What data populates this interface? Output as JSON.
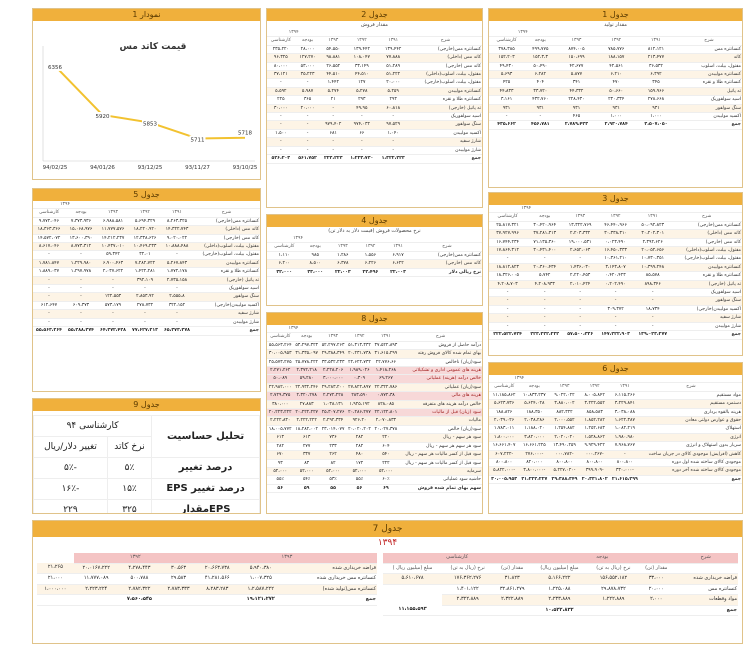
{
  "p1": {
    "title": "جدول 1",
    "subtitle": "مقدار تولید",
    "year": "۱۳۹۴",
    "cols": [
      "شرح",
      "۱۳۹۱",
      "۱۳۹۲",
      "۱۳۹۳",
      "بودجه",
      "کارشناسی"
    ],
    "rows": [
      [
        "کنسانتره مس",
        "۸۱۲،۱۲۱",
        "۷۸۵،۷۷۶",
        "۸۷۴،۰۰۵",
        "۴۹۹،۷۷۵",
        "۳۷۸،۳۸۵"
      ],
      [
        "کاتد",
        "۲۱۳،۴۷۷",
        "۱۸۸،۱۵۷",
        "۱۵۰،۶۹۹",
        "۱۵۲،۳،۳",
        "۱۵۲،۲۰۳"
      ],
      [
        "مفتول، بیلت، اسلوب",
        "۳۶،۵۳۲",
        "۴۲،۵۶۱",
        "۴۲،۶۷۷",
        "۵۰،۴۹۰",
        "۴۹،۴۳۰"
      ],
      [
        "کنسانتره مولیبدن",
        "۶،۳۹۲",
        "۶،۲۱۰",
        "۵،۸۷۷",
        "۶،۲۸۲",
        "۵،۶۹۳"
      ],
      [
        "کنسانتره طلا و نقره",
        "۳۴۵",
        "۴۷۰",
        "۳۴۱",
        "۴۰۴",
        "۴۲۵"
      ],
      [
        "ته پاتیل",
        "۱۵۹،۹۶۶",
        "۵۰،۶۶۰",
        "۴۴،۳۳۲",
        "۳۳،۷۲۰",
        "۴۴،۸۳۳"
      ],
      [
        "اسید سولفوریک",
        "۲۷۸،۶۶۸",
        "۲۳۰،۳۳۴",
        "۲۲۸،۴۳۰",
        "۴۳۲،۷۶۰",
        "۳،۱۶۱"
      ],
      [
        "سنگ سولفور",
        "۹۳۱",
        "۹۳۱",
        "۹۳۱",
        "۹۳۱",
        "۹۳۱"
      ],
      [
        "اکسید مولیبدن",
        "۱،۰۰۰",
        "۱،۰۰۰",
        "۴۶۵",
        "-",
        "-"
      ],
      [
        "جمع",
        "۳،۵۰۷،۰۵۰",
        "۲،۹۳۰،۷۸۴",
        "۲،۷۸۹،۴۲۳",
        "۴۵۶،۷۸۱",
        "۴۳۵،۶۶۲"
      ]
    ]
  },
  "p2": {
    "title": "جدول 2",
    "subtitle": "مقدار فروش",
    "year": "۱۳۹۴",
    "cols": [
      "شرح",
      "۱۳۹۱",
      "۱۳۹۲",
      "۱۳۹۳",
      "بودجه",
      "کارشناسی"
    ],
    "rows": [
      [
        "کنسانتره مس(خارجی)",
        "۱۳۹،۴۴۲",
        "۱۳۹،۴۴۲",
        "۵۴،۵۵۰",
        "۲۸،۰۰۰",
        "۲۳۵،۲۲۰"
      ],
      [
        "کاتد مس (داخلی)",
        "۷۷،۸۸۸",
        "۱۰۸،۰۴۷",
        "۹۸،۸۸۱",
        "۱۲۷،۲۷۰",
        "۹۶،۳۲۵"
      ],
      [
        "کاتد مس (خارجی)",
        "۵۱،۲۸۹",
        "۳۳،۱۴۹",
        "۲۶،۵۵۲",
        "۵۳،۰۰۰",
        "۸۰،۰۰۰"
      ],
      [
        "مفتول، بیلت، اسلوب(داخلی)",
        "۵۱،۲۲۲",
        "۴۴،۵۱۰",
        "۴۴،۵۱۰",
        "۳۵،۲۲۳",
        "۳۷،۱۲۱"
      ],
      [
        "مفتول، بیلت، اسلوب(خارجی)",
        "۲۰،۰۰۰",
        "۱۲۷",
        "۱،۴۴۲",
        "-",
        "-"
      ],
      [
        "کنسانتره مولیبدن",
        "۵،۲۵۹",
        "۵،۲۷۸",
        "۵،۲۷۴",
        "۵،۹۸۷",
        "۵،۵۹۲"
      ],
      [
        "کنسانتره طلا و نقره",
        "۲۹۳",
        "۲۹۳",
        "۲۱",
        "۳۶۵",
        "۲۲۵"
      ],
      [
        "ته پاتیل (خارجی)",
        "۶۰،۸۱۸",
        "۴۹،۹۵",
        "-",
        "۲۰،۰۰۰",
        "۳۰،۰۰۰"
      ],
      [
        "اسید سولفوریک",
        "-",
        "-",
        "-",
        "-",
        "-"
      ],
      [
        "سنگ سولفور",
        "۹۷،۵۲۹",
        "۹۷۴،۰۳۲",
        "۹۷۹،۴۰۲",
        "-",
        "-"
      ],
      [
        "اکسید مولیبدن",
        "۱،۰۴۰",
        "۶۶",
        "۶۸۱",
        "-",
        "۱،۵۰۰"
      ],
      [
        "شارژ سفید",
        "-",
        "-",
        "-",
        "-",
        "-"
      ],
      [
        "شارژ مولیبدن",
        "-",
        "-",
        "-",
        "-",
        "-"
      ],
      [
        "جمع",
        "۱،۳۲۲،۲۲۳",
        "۱،۲۲۳،۷۳۰",
        "۲۲۳،۲۲۳",
        "۵۶۱،۷۵۲",
        "۵۲۶،۲۰۳"
      ]
    ]
  },
  "p1c": {
    "title": "نمودار 1",
    "chart_title": "قیمت کاتد مس"
  },
  "chart_data": {
    "type": "line",
    "title": "قیمت کاتد مس",
    "categories": [
      "93/10/25",
      "93/11/27",
      "93/12/25",
      "94/01/26",
      "94/02/25"
    ],
    "values": [
      5718,
      5711,
      5853,
      5920,
      6356
    ],
    "ylim": [
      5600,
      6400
    ],
    "grid": false
  },
  "p3": {
    "title": "جدول 3",
    "year": "۱۳۹۴",
    "cols": [
      "شرح",
      "۱۳۹۱",
      "۱۳۹۲",
      "۱۳۹۳",
      "بودجه",
      "کارشناسی"
    ],
    "rows": [
      [
        "کنسانتره مس(خارجی)",
        "۵۰،۰۹۲،۸۲۳",
        "۴۶،۴۴۰،۹۶۶",
        "۱۳،۳۲۲،۷۶۹",
        "۳۰،۴۲۰،۹۶۴",
        "۲۵،۸۱۷،۳۲۱"
      ],
      [
        "کاتد مس (داخلی)",
        "۳۰،۲۰۲،۳۰۱",
        "۳۰،۳۳۸،۳۱۰",
        "۲،۲۰۳،۳۳۲",
        "۳۷،۲۸۱،۳۱۳",
        "۳۷،۹۲۷،۹۹۶"
      ],
      [
        "کاتد مس (خارجی)",
        "۲،۳۹۲،۶۲۶",
        "۰،۰۲۳،۴۹۰",
        "۱۹،۰۰۰،۵۳۱",
        "۷۱،۱۳۵،۳۶۰",
        "۱۶،۷۴۴،۲۳۴"
      ],
      [
        "مفتول، بیلت، اسلوب(داخلی)",
        "۲۰،۰۵۲،۶۵۶",
        "۱۶،۴۵۰،۳۳۳",
        "۲،۶۵۲،۰۶۳",
        "۳۰،۴۳۱،۴۰۰",
        "۱۷،۸۶۴،۳۱۲"
      ],
      [
        "مفتول، بیلت، اسلوب(خارجی)",
        "۱۰،۷۳۰،۳۵۱",
        "۱۰،۳۶۱،۲۱۰",
        "-",
        "-",
        "-"
      ],
      [
        "کنسانتره مولیبدن",
        "۱۰،۳۹۹،۲۴۸",
        "۳،۱۴۳،۸۰۷",
        "۱،۴۳۶،۰۳۰",
        "۲۰،۳۶۰،۴۳۴",
        "۱۸،۸۱۲،۸۲۳"
      ],
      [
        "کنسانتره طلا و نقره",
        "۸۵،۵۷۸",
        "۰،۴۲۰،۴۲۳",
        "۲،۲۲۰،۴۵۳",
        "۵،۷۴۲",
        "۱۸،۳۲۶،۰۰۵"
      ],
      [
        "ته پاتیل (خارجی)",
        "۸۹۸،۳۴۶",
        "۰،۲۰۲،۴۹۰",
        "۲،۰۱۰،۴۲۴",
        "۴،۲۰۸،۹۳۳",
        "۴،۲۰۸،۷۰۳"
      ],
      [
        "اسید سولفوریک",
        "-",
        "-",
        "-",
        "-",
        "-"
      ],
      [
        "سنگ سولفور",
        "-",
        "-",
        "-",
        "-",
        "-"
      ],
      [
        "اکسید مولیبدن(خارجی)",
        "۱۸،۷۳۴",
        "۳۰۹،۳۷۲",
        "-",
        "-",
        "-"
      ],
      [
        "شارژ سفید",
        "-",
        "-",
        "-",
        "-",
        "-"
      ],
      [
        "شارژ مولیبدن",
        "-",
        "-",
        "-",
        "-",
        "-"
      ],
      [
        "جمع",
        "۱۳۹،۰۲۳،۲۷۷",
        "۱۴۷،۲۲۲،۹۰۳",
        "۵۷،۵۰۰،۳۳۶",
        "۲۲۳،۲۲۲،۲۲۲",
        "۲۲۲،۵۲۲،۷۲۴"
      ]
    ]
  },
  "p5": {
    "title": "جدول 5",
    "year": "۱۳۹۴",
    "cols": [
      "شرح",
      "۱۳۹۱",
      "۱۳۹۲",
      "۱۳۹۳",
      "بودجه",
      "کارشناسی"
    ],
    "rows": [
      [
        "کنسانتره مس(خارجی)",
        "۸،۲۶۳،۳۲۵",
        "۵،۶۹۴،۳۲۹",
        "۶،۹۸۸،۵۸۱",
        "۷،۳۷۳،۹۳۶",
        "۹،۷۷۲،۰۴۶"
      ],
      [
        "کاتد مس (داخلی)",
        "۱۴،۳۲۲،۷۴۳",
        "۱۸،۲۲۰،۹۲۰",
        "۱۱،۷۷۷،۵۷۶",
        "۱۵،۰۶۸،۹۷۶",
        "۱۸،۳۶۳،۳۶۶"
      ],
      [
        "کاتد مس (خارجی)",
        "۹،۰۲۰،۰۲۲",
        "۱۲،۳۳۸،۶۲۶",
        "۱۴،۲۱۲،۲۳۷",
        "۱۳،۶۰۰،۳۹۰",
        "۱۴،۵۷۲،۰۷۲"
      ],
      [
        "مفتول، بیلت، اسلوب(داخلی)",
        "۱۰،۸۸۸،۴۸۸",
        "۱۰،۴۶۹،۲۳۳",
        "۱۰،۴۳۷،۰۱۰",
        "۸،۷۷۳،۳۱۲",
        "۸،۶۱۷،۰۴۶"
      ],
      [
        "مفتول، بیلت، اسلوب(خارجی)",
        "-",
        "۳۲،۰۱",
        "۵۹،۳۴۲",
        "-",
        "-"
      ],
      [
        "کنسانتره مولیبدن",
        "۵،۲۶۷،۸۴۳",
        "۷،۲۸۲،۷۲۲",
        "۶،۹۰۰،۴۶۳",
        "۱،۲۲۹،۹۸۰",
        "۱،۷۸۱،۸۴۷"
      ],
      [
        "کنسانتره طلا و نقره",
        "۱،۷۷۲،۱۷۸",
        "۱،۴۲۲،۲۸۱",
        "۲،۰۳۷،۶۲۲",
        "۱،۲۹۷،۹۷۸",
        "۱،۸۸۹،۰۳۷"
      ],
      [
        "ته پاتیل (خارجی)",
        "۲،۷۳۵،۱۵۸",
        "۳۹۲،۱۰۹",
        "-",
        "-",
        "-"
      ],
      [
        "اسید سولفوریک",
        "-",
        "-",
        "-",
        "-",
        "-"
      ],
      [
        "سنگ سولفور",
        "۲،۵۵۵،۸",
        "۲،۸۵۳،۹۲",
        "۱۲۲،۵۵۳",
        "-",
        "-"
      ],
      [
        "اکسید مولیبدن(خارجی)",
        "۳۲۲،۱۵۲",
        "۲۷۸،۷۳۲",
        "۵۷۳،۱۷۹",
        "۶۰۹،۳۷۳",
        "۶۱۲،۶۴۷"
      ],
      [
        "شارژ سفید",
        "-",
        "-",
        "-",
        "-",
        "-"
      ],
      [
        "شارژ مولیبدن",
        "-",
        "-",
        "-",
        "-",
        "-"
      ],
      [
        "جمع",
        "۶۵،۳۷۳،۳۷۸",
        "۷۷،۶۲۷،۲۱۳",
        "۶۴،۳۷۲،۴۲۸",
        "۵۵،۲۸۸،۳۷۴",
        "۵۵،۵۶۳،۲۶۴"
      ]
    ]
  },
  "p4": {
    "title": "جدول 4",
    "subtitle": "نرخ محصولات فروش (قیمت دلار به دلار تن)",
    "year": "۱۳۹۴",
    "cols": [
      "شرح",
      "۱۳۹۱",
      "۱۳۹۲",
      "۱۳۹۳",
      "بودجه",
      "کارشناسی"
    ],
    "cols2": [
      "",
      "",
      "۶ ماهه",
      "۹ ماهه",
      "واقعی",
      "",
      ""
    ],
    "rows": [
      [
        "کنسانتره مس(خارجی)",
        "۶،۹۱۷",
        "۱،۵۵۶",
        "۱،۲۸۶",
        "۹۸۵",
        "۱،۱۱۰"
      ],
      [
        "کاتد مس (خارجی)",
        "۶،۶۲۲",
        "۶،۲۲۶",
        "۶،۳۷۸",
        "۸،۵۰۰",
        "۶،۲۰۰"
      ],
      [
        "نرخ ریالی دلار",
        "۲۲،۰۰۳",
        "۲۲،۴۹۶",
        "۲۲،۰۰۳",
        "۳۳،۰۰۰",
        "۳۲،۰۰۰"
      ]
    ]
  },
  "p8": {
    "title": "جدول 8",
    "year": "۱۳۹۴",
    "cols": [
      "شرح",
      "۱۳۹۱",
      "۱۳۹۲",
      "۱۳۹۳",
      "بودجه",
      "کارشناسی"
    ],
    "rows": [
      [
        "درآمد حاصل از فروش",
        "۳۷،۵۲۲،۸۹۳",
        "۵۱،۳۱۳،۳۳۲",
        "۵۲،۲۹۷،۲۶۳",
        "۵۳،۲۹۷،۳۲۳",
        "۵۵،۵۶۳،۲۶۴"
      ],
      [
        "بهای تمام شده کالای فروش رفته",
        "۳۱،۶۱۵،۲۹۹",
        "۲۰،۲۳۱،۷۳۸",
        "۲۹،۳۸۸،۳۴۹",
        "۳۱،۳۳۵،۰۹۷",
        "۳۰،۰۰۵،۹۵۳"
      ],
      [
        "سود(زیان) ناخالص",
        "۲۲،۷۷۶،۶۶",
        "۲۲،۶۲۲،۷۳۲",
        "۳۳،۵۳۲،۲۳۳",
        "۲۵،۷۷۸،۲۲۲",
        "۲۵،۵۷۳،۲۷۵"
      ],
      [
        "هزینه های عمومی اداری و تشکیلاتی",
        "۱،۴۱۸،۲۶۸",
        "۱،۹۸۹،۰۲۶",
        "۲،۲۲۸،۲۰۶",
        "۲،۳۷۲،۲۱۸",
        "۲،۲۷۱،۲۶۲"
      ],
      [
        "خالص درآمد (هزینه) عملیاتی",
        "۶۹،۲۶۷",
        "۰،۳۰۹",
        "۳،۰۰۰،۰۰۰",
        "۵۹،۲۸۰",
        "۵۰،۰۸۹"
      ],
      [
        "سود(زیان) عملیاتی",
        "۲۲،۳۲۲،۷۸۶",
        "۲۷،۸۲۲،۸۹۷",
        "۲۹،۲۸۳،۲۰۰",
        "۲۲،۹۳۲،۲۴۶",
        "۲۲،۹۸۲،۰۰۰"
      ],
      [
        "هزینه های مالی",
        "۰،۷۷۲،۳۸",
        "۲۸۳،۵۹۰",
        "۲،۲۷۲،۲۲۸",
        "۲،۳۲۰،۲۷۸",
        "۲،۷۲۹،۳۷۵"
      ],
      [
        "خالص درآمد هزینه های متفرقه",
        "۸۲۸،۰۸۵",
        "۱،۹۲۵،۱۹۲",
        "۱،۰۳۸،۱۳۱",
        "۲۷،۸۸۳",
        "۳۸۰،۰۰۰"
      ],
      [
        "سود (زیان) قبل از مالیات",
        "۲۲،۱۲۲،۸۰۱",
        "۲۰،۲۸۶،۲۷۷",
        "۲۵،۳۰۷،۲۷۶",
        "۲۰،۲۲۲،۲۲۷",
        "۲۰،۲۲۳،۲۲۲"
      ],
      [
        "مالیات",
        "۲،۰۷۰،۸۳۳",
        "۹۲۶،۲۰",
        "۲،۲۹۲،۳۳۴",
        "۲،۲۲۲،۲۲۲",
        "۲،۲۲۲،۸۳۰"
      ],
      [
        "سود(زیان) خالص",
        "۲۰،۰۲۷،۳۷۸",
        "۲۰،۰۲۰،۲۰۲",
        "۲۳،۰۱۴،۰۷۷",
        "۱۸،۲۸۲،۰۰۲",
        "۱۸،۰۰۵،۷۷۲"
      ],
      [
        "سود هر سهم - ریال",
        "۲۲۰",
        "۲۸۲",
        "۷۳۶",
        "۶۱۳",
        "۶۱۳"
      ],
      [
        "سود هر سهم هر سهم - ریال",
        "۶۰۴",
        "۲۸۲",
        "۲۳۳",
        "۲۷۷",
        "۲۸۲"
      ],
      [
        "سود قبل از کسر مالیات هر سهم - ریال",
        "۵۴۰",
        "۴۸۰",
        "۲۶۲",
        "۳۳۷",
        "۶۷۰"
      ],
      [
        "سود قبل از کسر مالیات هر سهم - ریال",
        "۲۲۲",
        "۱۷۲",
        "۸۲",
        "۸۳",
        "۹۳"
      ],
      [
        "سرمایه",
        "۵۲،۰۰۰",
        "۵۲،۰۰۰",
        "۵۲،۰۰۰",
        "۵۲،۰۰۰",
        "۵۲،۰۰۰"
      ],
      [
        "حاشیه سود عملیاتی",
        "۶۰٪",
        "۵۵٪",
        "۵۳٪",
        "۵۴٪",
        "۵۵٪"
      ],
      [
        "سهم بهای تمام شده فروش",
        "۶۹",
        "۵۶",
        "۵۵",
        "۵۹",
        "۵۶"
      ]
    ]
  },
  "p6": {
    "title": "جدول 6",
    "year": "۱۳۹۴",
    "cols": [
      "شرح",
      "۱۳۹۱",
      "۱۳۹۲",
      "۱۳۹۳",
      "بودجه",
      "کارشناسی"
    ],
    "rows": [
      [
        "مواد مستقیم",
        "۶،۱۱۵،۲۶۶",
        "۸،۰۰۵،۸۴۲",
        "۹،۰۲۲،۰۲۲",
        "۱۰،۸۳۳،۲۳۷",
        "۱۱،۱۸۵،۸۶۲"
      ],
      [
        "دستمزد مستقیم",
        "۳،۲۲۹،۸۴۱",
        "۳،۲۲۲،۵۵۲",
        "۳،۸۸۰،۰۰۲",
        "۵،۶۲۴،۰۲۸",
        "۵،۶۲۳،۷۳۶"
      ],
      [
        "هزینه بالقوه برداری",
        "۳،۰۳۸،۰۸۸",
        "۸۵۸،۵۸۳",
        "۸۸۲،۳۲۲",
        "۱۸۸،۳۵۰",
        "۱۸۸،۸۲۶"
      ],
      [
        "حقوق و عوارض دولتی معادن",
        "۱،۶۲۲،۳۸۷",
        "۱،۸۵۲،۲۸۲",
        "۲،۰۰۰،۵۵۲",
        "۲،۰۳۸،۲۸۶",
        "۲،۰۳۹،۰۲۶"
      ],
      [
        "استهلاک",
        "۱،۰۸۲،۲۱۹",
        "۱،۲۵۲،۶۸۳",
        "۱،۲۵۴،۸۸۲",
        "۱،۱۸۸،۰۲۰",
        "۱،۷۸۳،۰۱۱"
      ],
      [
        "انرژی",
        "۱،۹۸۰،۹۸۰",
        "۱،۵۲۸،۸۶۲",
        "۲،۰۲۰،۰۲۰",
        "۳،۸۲۰،۰۰۰",
        "۱،۸۰۰،۰۰۰"
      ],
      [
        "سربار بدون استهلاک و انرژی",
        "۷،۹۶۸،۷۶۷",
        "۹،۹۲۹،۴۲۲",
        "۱۳،۴۹۰،۲۵۹",
        "۱۶،۶۶۱،۲۲۵",
        "۱۶،۶۶۱،۴۰۷"
      ],
      [
        "کاهش (افزایش) موجودی کالای در جریان ساخت",
        "-",
        "-۰۰۰،۲۶۷",
        "-۰۰۰،۷۸۲",
        "-۲۷۶،۰۰۰",
        "-۶۰۷،۲۲۲"
      ],
      [
        "موجودی کالای ساخته شده اول دوره",
        "۸۰۰،۸۰۰",
        "۸۰۰،۸۰۰",
        "۸۰۰،۸۰۰",
        "۸۲۰،۰۰۰",
        "۸۰۰،۸۰۰"
      ],
      [
        "موجودی کالای ساخته شده آخر دوره",
        "-۳۳۰،۰۰۰",
        "-۳۹۹،۹۰۹",
        "-۵،۲۲۷،۰۲۰",
        "-۳،۸۰۰،۰۰۰",
        "-۵،۸۲۲،۰۰۰"
      ],
      [
        "جمع",
        "۲۱،۶۱۵،۲۹۹",
        "۲۰،۳۳۱،۸۰۲",
        "۲۹،۳۸۸،۳۴۹",
        "۳۱،۲۲۲،۲۲۷",
        "۳۰،۰۰۵،۹۵۳"
      ]
    ]
  },
  "p9": {
    "title": "جدول 9",
    "head_right": "تحلیل حساسیت",
    "head_left": "کارشناسی ۹۴",
    "c1": "نرخ کاتد",
    "c2": "تغییر دلار/ریال",
    "rows": [
      [
        "درصد تغییر",
        "۵٪",
        "-۵٪"
      ],
      [
        "درصد تغییر EPS",
        "۱۵٪",
        "-۱۶٪"
      ],
      [
        "EPSمقدار",
        "۳۲۵",
        "۲۲۹"
      ]
    ]
  },
  "p7": {
    "title": "جدول 7",
    "year_big": "۱۳۹۴",
    "left_years": [
      "۱۳۹۲",
      "۱۳۹۳"
    ],
    "right_head": [
      "شرح",
      "بودجه",
      "کارشناسی"
    ],
    "sub_right": [
      "مقدار (تن)",
      "نرخ (ریال به تن)",
      "مبلغ (میلیون ریال)",
      "مقدار (تن)",
      "نرخ (ریال به تن)",
      "مبلغ (میلیون ریال )"
    ],
    "rows": [
      [
        "قراضه خریداری شده",
        "۳۳،۰۰۰",
        "۱۵۶،۵۵۲،۱۸۲",
        "۵،۱۶۶،۲۲۲",
        "۳۱،۸۲۳",
        "۱۷۶،۳۶۲،۲۷۶",
        "۵،۶۱۰،۶۷۸"
      ],
      [
        "کنسانتره مس",
        "۲۰،۰۰۰",
        "۲۹،۸۷۸،۷۳۲",
        "۱،۲۲۵،۰۸۸",
        "۳۲،۸۶۱،۲۷۹",
        "۱،۴۰۱،۱۲۲"
      ],
      [
        "مواد وقطعات",
        "۲،۰۰۰",
        "۱،۲۲۲،۸۸۹",
        "۲،۲۳۳،۸۸۹",
        "۲،۳۲۲،۸۸۹",
        "۲،۳۲۲،۸۸۹"
      ],
      [
        "جمع",
        "",
        "",
        "۱۰،۵۲۲،۸۳۲",
        "",
        "",
        "۱۱،۱۵۵،۵۹۳"
      ]
    ],
    "left_rows": [
      [
        "قراضه خریداری شده",
        "۲۱،۲۶۵",
        "۲۰،۰۱۶۷،۲۲۲",
        "۴،۲۷۸،۴۴۳",
        "۳۰،۵۶۳",
        "۲۰،۶۶۳،۷۳۸",
        "۵،۹۴۰،۳۸۰"
      ],
      [
        "کنسانتره مس خریداری شده",
        "۲۱،۰۰۰",
        "۱۱،۷۷۷،۰۸۹",
        "۵۰۰،۷۸۸",
        "۲۹،۵۸۳",
        "۴۱،۲۸۱،۵۶۶",
        "۱،۰۰۷،۳۲۵"
      ],
      [
        "کنسانتره مس(تولید شده)",
        "۱،۰۰۰،۰۰۰",
        "۲،۲۲۳،۲۲۴",
        "۲،۷۸۲،۳۲۲",
        "۲،۷۸۳،۳۳۳",
        "۸،۲۸۳،۲۸۳",
        "۱،۲،۵۸۷،۲۲۲"
      ],
      [
        "جمع",
        "",
        "",
        "۷،۵۶۰،۵۴۵",
        "",
        "",
        "۱۹،۱۲۱،۲۷۲"
      ]
    ]
  }
}
